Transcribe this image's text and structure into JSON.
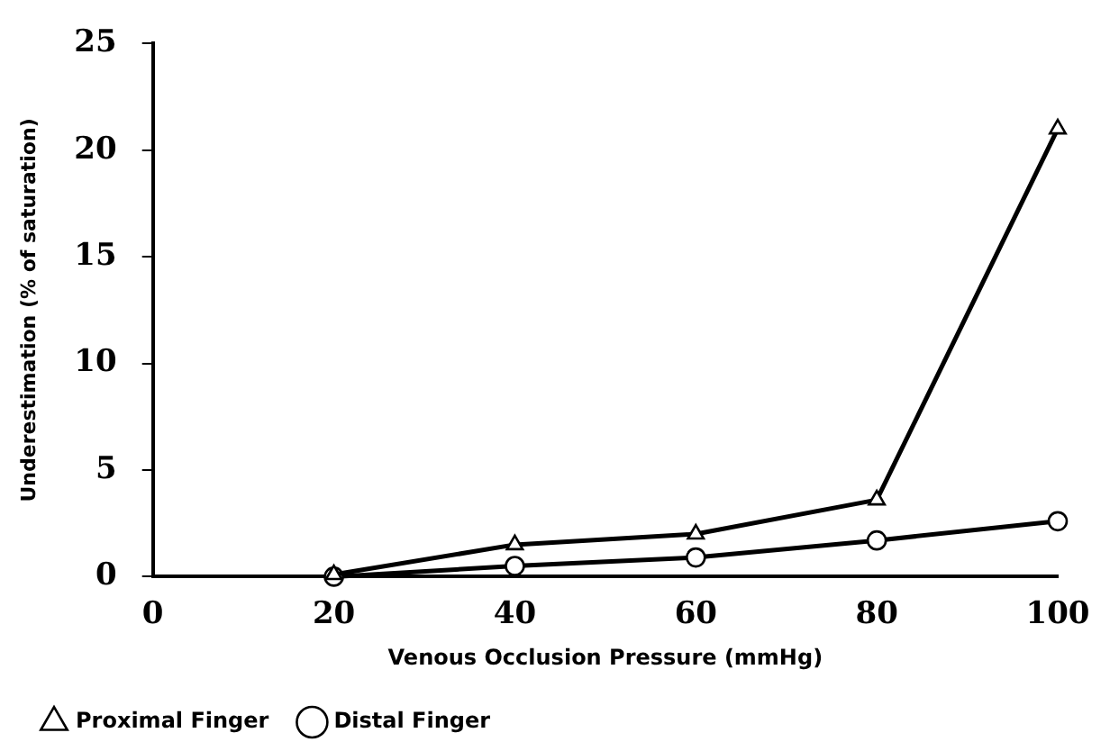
{
  "chart_data": {
    "type": "line",
    "xlabel": "Venous Occlusion Pressure (mmHg)",
    "ylabel": "Underestimation (% of saturation)",
    "x": [
      20,
      40,
      60,
      80,
      100
    ],
    "series": [
      {
        "name": "Proximal Finger",
        "color": "#000000",
        "marker": "triangle",
        "values": [
          0.1,
          1.5,
          2.0,
          3.6,
          21.0
        ]
      },
      {
        "name": "Distal Finger",
        "color": "#000000",
        "marker": "circle",
        "values": [
          0,
          0.5,
          0.9,
          1.7,
          2.6
        ]
      }
    ],
    "xlim": [
      0,
      100
    ],
    "xticks": [
      0,
      20,
      40,
      60,
      80,
      100
    ],
    "ylim": [
      0,
      25
    ],
    "yticks": [
      0,
      5,
      10,
      15,
      20,
      25
    ],
    "grid": false,
    "legend": "bottom",
    "line_style": "solid"
  }
}
